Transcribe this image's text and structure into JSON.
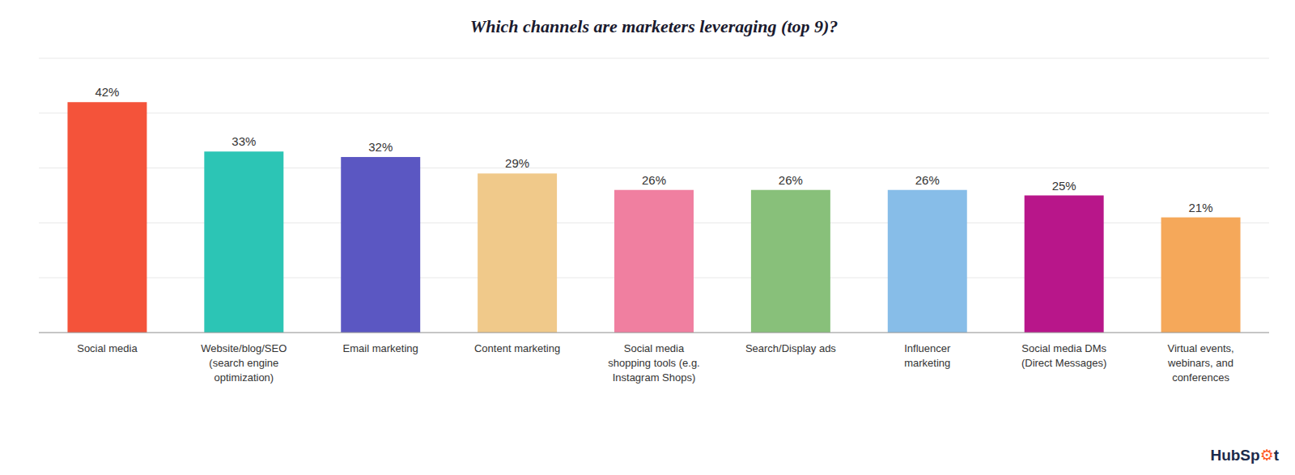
{
  "chart_data": {
    "type": "bar",
    "title": "Which channels are marketers leveraging (top 9)?",
    "categories": [
      "Social media",
      "Website/blog/SEO\n(search engine\noptimization)",
      "Email marketing",
      "Content marketing",
      "Social media\nshopping tools (e.g.\nInstagram Shops)",
      "Search/Display ads",
      "Influencer\nmarketing",
      "Social media DMs\n(Direct Messages)",
      "Virtual events,\nwebinars, and\nconferences"
    ],
    "values": [
      42,
      33,
      32,
      29,
      26,
      26,
      26,
      25,
      21
    ],
    "value_labels": [
      "42%",
      "33%",
      "32%",
      "29%",
      "26%",
      "26%",
      "26%",
      "25%",
      "21%"
    ],
    "colors": [
      "#F4533A",
      "#2CC5B5",
      "#5B57C2",
      "#F0C98A",
      "#F07FA0",
      "#88C07A",
      "#87BDE8",
      "#B8168A",
      "#F5A85A"
    ],
    "ylim": [
      0,
      50
    ],
    "yticks": [
      0,
      10,
      20,
      30,
      40,
      50
    ],
    "grid": true,
    "data_labels": true,
    "tick_labels": "x",
    "annotations": [
      {
        "text": "Hub",
        "color": "#1c2b4b"
      },
      {
        "text": "Sp",
        "color": "#1c2b4b"
      },
      {
        "text": "⚙",
        "color": "#ff5722"
      },
      {
        "text": "t",
        "color": "#1c2b4b"
      }
    ]
  }
}
